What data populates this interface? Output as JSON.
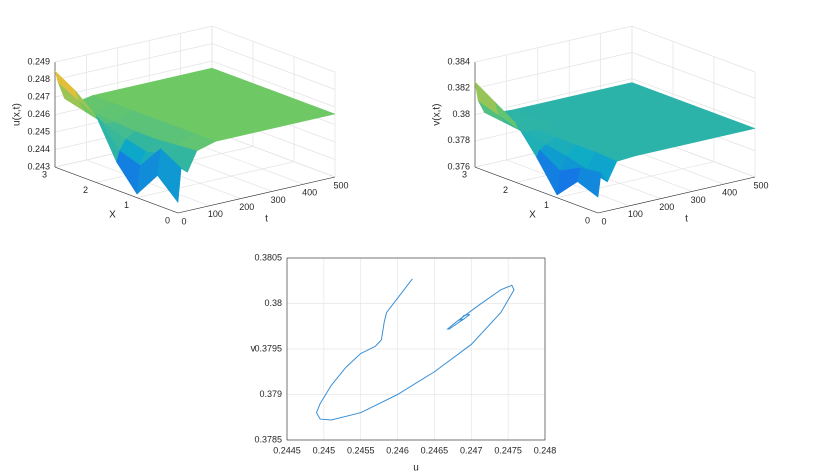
{
  "chart_data": [
    {
      "type": "surface",
      "xlabel": "X",
      "ylabel": "t",
      "zlabel": "u(x,t)",
      "x": [
        0,
        0.5,
        1,
        1.5,
        2,
        2.5,
        3
      ],
      "t": [
        0,
        10,
        30,
        60,
        120,
        250,
        500
      ],
      "z": [
        [
          0.2436,
          0.2447,
          0.2432,
          0.2446,
          0.2468,
          0.2478,
          0.2485
        ],
        [
          0.2455,
          0.2462,
          0.2448,
          0.2452,
          0.2466,
          0.2472,
          0.2478
        ],
        [
          0.2452,
          0.2458,
          0.2455,
          0.2458,
          0.2462,
          0.2465,
          0.2468
        ],
        [
          0.2463,
          0.2462,
          0.2461,
          0.2461,
          0.2462,
          0.2463,
          0.2464
        ],
        [
          0.2466,
          0.2466,
          0.2466,
          0.2466,
          0.2466,
          0.2466,
          0.2466
        ],
        [
          0.2466,
          0.2466,
          0.2466,
          0.2466,
          0.2466,
          0.2466,
          0.2466
        ],
        [
          0.2466,
          0.2466,
          0.2466,
          0.2466,
          0.2466,
          0.2466,
          0.2466
        ]
      ],
      "xlim": [
        0,
        3
      ],
      "ylim": [
        0,
        500
      ],
      "zlim": [
        0.243,
        0.249
      ],
      "xticks": [
        0,
        1,
        2,
        3
      ],
      "yticks": [
        0,
        100,
        200,
        300,
        400,
        500
      ],
      "zticks": [
        0.243,
        0.244,
        0.245,
        0.246,
        0.247,
        0.248,
        0.249
      ],
      "grid": true
    },
    {
      "type": "surface",
      "xlabel": "X",
      "ylabel": "t",
      "zlabel": "v(x,t)",
      "x": [
        0,
        0.5,
        1,
        1.5,
        2,
        2.5,
        3
      ],
      "t": [
        0,
        10,
        30,
        60,
        120,
        250,
        500
      ],
      "z": [
        [
          0.3772,
          0.3778,
          0.3762,
          0.3785,
          0.3805,
          0.3815,
          0.3825
        ],
        [
          0.379,
          0.3788,
          0.378,
          0.379,
          0.38,
          0.3805,
          0.381
        ],
        [
          0.3782,
          0.3786,
          0.379,
          0.3793,
          0.3796,
          0.3798,
          0.38
        ],
        [
          0.3796,
          0.3797,
          0.3797,
          0.3797,
          0.3797,
          0.3798,
          0.3798
        ],
        [
          0.3797,
          0.3797,
          0.3797,
          0.3797,
          0.3797,
          0.3797,
          0.3797
        ],
        [
          0.3797,
          0.3797,
          0.3797,
          0.3797,
          0.3797,
          0.3797,
          0.3797
        ],
        [
          0.3797,
          0.3797,
          0.3797,
          0.3797,
          0.3797,
          0.3797,
          0.3797
        ]
      ],
      "xlim": [
        0,
        3
      ],
      "ylim": [
        0,
        500
      ],
      "zlim": [
        0.376,
        0.384
      ],
      "xticks": [
        0,
        1,
        2,
        3
      ],
      "yticks": [
        0,
        100,
        200,
        300,
        400,
        500
      ],
      "zticks": [
        0.376,
        0.378,
        0.38,
        0.382,
        0.384
      ],
      "grid": true
    },
    {
      "type": "line",
      "xlabel": "u",
      "ylabel": "v",
      "x": [
        0.2462,
        0.24585,
        0.24582,
        0.24578,
        0.2457,
        0.2455,
        0.2453,
        0.2451,
        0.24495,
        0.2449,
        0.24495,
        0.2451,
        0.2455,
        0.246,
        0.2465,
        0.247,
        0.2474,
        0.24758,
        0.24755,
        0.2474,
        0.2471,
        0.2468,
        0.24668,
        0.2467,
        0.2469,
        0.24698,
        0.2469,
        0.24685,
        0.2469
      ],
      "series": [
        {
          "color": "#3a8fd4",
          "values": [
            0.38027,
            0.3799,
            0.3798,
            0.3796,
            0.37953,
            0.37945,
            0.3793,
            0.3791,
            0.3789,
            0.3788,
            0.37873,
            0.37872,
            0.3788,
            0.379,
            0.37925,
            0.37955,
            0.3799,
            0.38015,
            0.3802,
            0.38015,
            0.37998,
            0.3798,
            0.37972,
            0.37972,
            0.37983,
            0.37988,
            0.37987,
            0.37982,
            0.37983
          ]
        }
      ],
      "xlim": [
        0.2445,
        0.248
      ],
      "ylim": [
        0.3785,
        0.3805
      ],
      "xticks": [
        0.2445,
        0.245,
        0.2455,
        0.246,
        0.2465,
        0.247,
        0.2475,
        0.248
      ],
      "yticks": [
        0.3785,
        0.379,
        0.3795,
        0.38,
        0.3805
      ],
      "grid": true
    }
  ]
}
